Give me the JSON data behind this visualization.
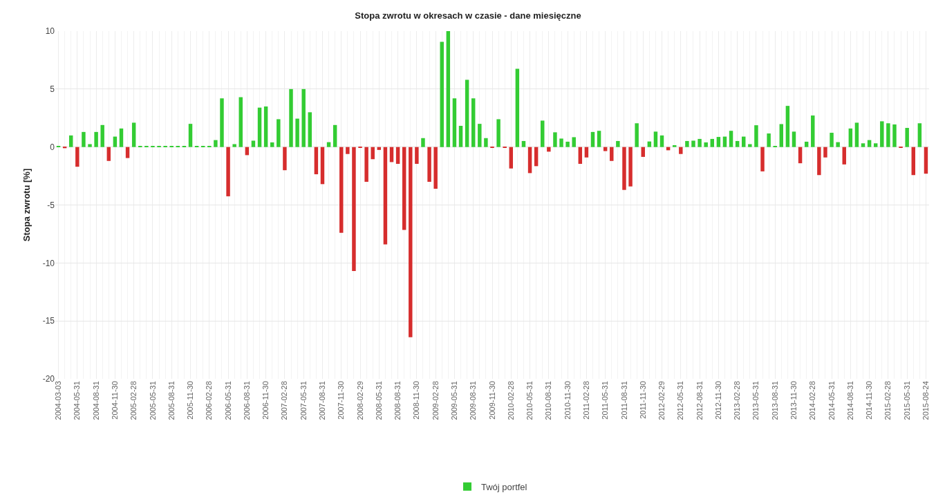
{
  "chart_data": {
    "type": "bar",
    "title": "Stopa zwrotu w okresach w czasie - dane miesięczne",
    "ylabel": "Stopa zwrotu [%]",
    "categories": [
      "2004-03-03",
      null,
      null,
      "2004-05-31",
      null,
      null,
      "2004-08-31",
      null,
      null,
      "2004-11-30",
      null,
      null,
      "2005-02-28",
      null,
      null,
      "2005-05-31",
      null,
      null,
      "2005-08-31",
      null,
      null,
      "2005-11-30",
      null,
      null,
      "2006-02-28",
      null,
      null,
      "2006-05-31",
      null,
      null,
      "2006-08-31",
      null,
      null,
      "2006-11-30",
      null,
      null,
      "2007-02-28",
      null,
      null,
      "2007-05-31",
      null,
      null,
      "2007-08-31",
      null,
      null,
      "2007-11-30",
      null,
      null,
      "2008-02-29",
      null,
      null,
      "2008-05-31",
      null,
      null,
      "2008-08-31",
      null,
      null,
      "2008-11-30",
      null,
      null,
      "2009-02-28",
      null,
      null,
      "2009-05-31",
      null,
      null,
      "2009-08-31",
      null,
      null,
      "2009-11-30",
      null,
      null,
      "2010-02-28",
      null,
      null,
      "2010-05-31",
      null,
      null,
      "2010-08-31",
      null,
      null,
      "2010-11-30",
      null,
      null,
      "2011-02-28",
      null,
      null,
      "2011-05-31",
      null,
      null,
      "2011-08-31",
      null,
      null,
      "2011-11-30",
      null,
      null,
      "2012-02-29",
      null,
      null,
      "2012-05-31",
      null,
      null,
      "2012-08-31",
      null,
      null,
      "2012-11-30",
      null,
      null,
      "2013-02-28",
      null,
      null,
      "2013-05-31",
      null,
      null,
      "2013-08-31",
      null,
      null,
      "2013-11-30",
      null,
      null,
      "2014-02-28",
      null,
      null,
      "2014-05-31",
      null,
      null,
      "2014-08-31",
      null,
      null,
      "2014-11-30",
      null,
      null,
      "2015-02-28",
      null,
      null,
      "2015-05-31",
      null,
      null,
      "2015-08-24"
    ],
    "series": [
      {
        "name": "Twój portfel",
        "values": [
          0.05,
          -0.1,
          1.0,
          -1.7,
          1.3,
          0.25,
          1.3,
          1.9,
          -1.2,
          0.9,
          1.6,
          -0.95,
          2.1,
          0.05,
          0.05,
          0.05,
          0.05,
          0.05,
          0.05,
          0.05,
          0.05,
          2.0,
          0.05,
          0.05,
          0.05,
          0.6,
          4.2,
          -4.25,
          0.25,
          4.3,
          -0.7,
          0.55,
          3.4,
          3.5,
          0.4,
          2.4,
          -2.0,
          5.0,
          2.45,
          5.0,
          3.0,
          -2.35,
          -3.2,
          0.42,
          1.9,
          -7.4,
          -0.6,
          -10.7,
          -0.05,
          -3.0,
          -1.05,
          -0.25,
          -8.4,
          -1.3,
          -1.45,
          -7.15,
          -16.4,
          -1.45,
          0.77,
          -3.0,
          -3.6,
          9.07,
          10.0,
          4.2,
          1.83,
          5.8,
          4.2,
          2.0,
          0.77,
          -0.05,
          2.4,
          -0.05,
          -1.85,
          6.75,
          0.52,
          -2.25,
          -1.65,
          2.28,
          -0.4,
          1.27,
          0.73,
          0.46,
          0.85,
          -1.45,
          -0.9,
          1.3,
          1.4,
          -0.35,
          -1.2,
          0.52,
          -3.7,
          -3.4,
          2.05,
          -0.85,
          0.48,
          1.33,
          1.0,
          -0.28,
          0.16,
          -0.6,
          0.52,
          0.55,
          0.7,
          0.4,
          0.7,
          0.87,
          0.9,
          1.4,
          0.52,
          0.9,
          0.25,
          1.88,
          -2.1,
          1.17,
          0.08,
          1.98,
          3.55,
          1.33,
          -1.4,
          0.46,
          2.72,
          -2.42,
          -0.9,
          1.23,
          0.42,
          -1.5,
          1.6,
          2.1,
          0.32,
          0.6,
          0.32,
          2.22,
          2.05,
          1.95,
          -0.05,
          1.65,
          -2.42,
          2.05,
          -2.3
        ],
        "colors": [
          "#33cc33",
          "#d62d2d",
          "#33cc33",
          "#d62d2d",
          "#33cc33",
          "#33cc33",
          "#33cc33",
          "#33cc33",
          "#d62d2d",
          "#33cc33",
          "#33cc33",
          "#d62d2d",
          "#33cc33",
          "#33cc33",
          "#33cc33",
          "#33cc33",
          "#33cc33",
          "#33cc33",
          "#33cc33",
          "#33cc33",
          "#33cc33",
          "#33cc33",
          "#33cc33",
          "#33cc33",
          "#33cc33",
          "#33cc33",
          "#33cc33",
          "#d62d2d",
          "#33cc33",
          "#33cc33",
          "#d62d2d",
          "#33cc33",
          "#33cc33",
          "#33cc33",
          "#33cc33",
          "#33cc33",
          "#d62d2d",
          "#33cc33",
          "#33cc33",
          "#33cc33",
          "#33cc33",
          "#d62d2d",
          "#d62d2d",
          "#33cc33",
          "#33cc33",
          "#d62d2d",
          "#d62d2d",
          "#d62d2d",
          "#d62d2d",
          "#d62d2d",
          "#d62d2d",
          "#d62d2d",
          "#d62d2d",
          "#d62d2d",
          "#d62d2d",
          "#d62d2d",
          "#d62d2d",
          "#d62d2d",
          "#33cc33",
          "#d62d2d",
          "#d62d2d",
          "#33cc33",
          "#33cc33",
          "#33cc33",
          "#33cc33",
          "#33cc33",
          "#33cc33",
          "#33cc33",
          "#33cc33",
          "#d62d2d",
          "#33cc33",
          "#d62d2d",
          "#d62d2d",
          "#33cc33",
          "#33cc33",
          "#d62d2d",
          "#d62d2d",
          "#33cc33",
          "#d62d2d",
          "#33cc33",
          "#33cc33",
          "#33cc33",
          "#33cc33",
          "#d62d2d",
          "#d62d2d",
          "#33cc33",
          "#33cc33",
          "#d62d2d",
          "#d62d2d",
          "#33cc33",
          "#d62d2d",
          "#d62d2d",
          "#33cc33",
          "#d62d2d",
          "#33cc33",
          "#33cc33",
          "#33cc33",
          "#d62d2d",
          "#33cc33",
          "#d62d2d",
          "#33cc33",
          "#33cc33",
          "#33cc33",
          "#33cc33",
          "#33cc33",
          "#33cc33",
          "#33cc33",
          "#33cc33",
          "#33cc33",
          "#33cc33",
          "#33cc33",
          "#33cc33",
          "#d62d2d",
          "#33cc33",
          "#33cc33",
          "#33cc33",
          "#33cc33",
          "#33cc33",
          "#d62d2d",
          "#33cc33",
          "#33cc33",
          "#d62d2d",
          "#d62d2d",
          "#33cc33",
          "#33cc33",
          "#d62d2d",
          "#33cc33",
          "#33cc33",
          "#33cc33",
          "#33cc33",
          "#33cc33",
          "#33cc33",
          "#33cc33",
          "#33cc33",
          "#d62d2d",
          "#33cc33",
          "#d62d2d",
          "#33cc33",
          "#d62d2d"
        ]
      }
    ],
    "ylim": [
      -20,
      10
    ],
    "yticks": [
      -20,
      -15,
      -10,
      -5,
      0,
      5,
      10
    ],
    "grid": true,
    "legend": "bottom"
  }
}
